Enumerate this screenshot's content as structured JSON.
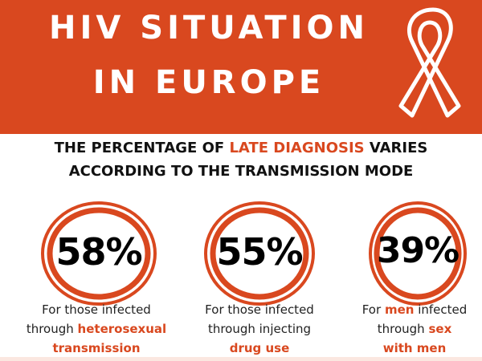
{
  "header": {
    "title_line1": "HIV SITUATION",
    "title_line2": "IN EUROPE",
    "ribbon_icon": "awareness-ribbon-icon"
  },
  "subtitle": {
    "part1": "THE PERCENTAGE OF ",
    "highlight": "LATE DIAGNOSIS",
    "part2": " VARIES",
    "line2": "ACCORDING TO THE TRANSMISSION MODE"
  },
  "stats": [
    {
      "value": "58%",
      "line1": "For those infected",
      "line2_pre": "through ",
      "line2_em": "heterosexual",
      "line3_em": "transmission"
    },
    {
      "value": "55%",
      "line1": "For those infected",
      "line2": "through injecting",
      "line3_em": "drug use"
    },
    {
      "value": "39%",
      "line1_pre": "For ",
      "line1_em": "men",
      "line1_post": " infected",
      "line2_pre": "through ",
      "line2_em": "sex",
      "line3_em": "with men"
    }
  ],
  "colors": {
    "accent": "#d9481f",
    "text": "#111111",
    "background": "#ffffff"
  }
}
